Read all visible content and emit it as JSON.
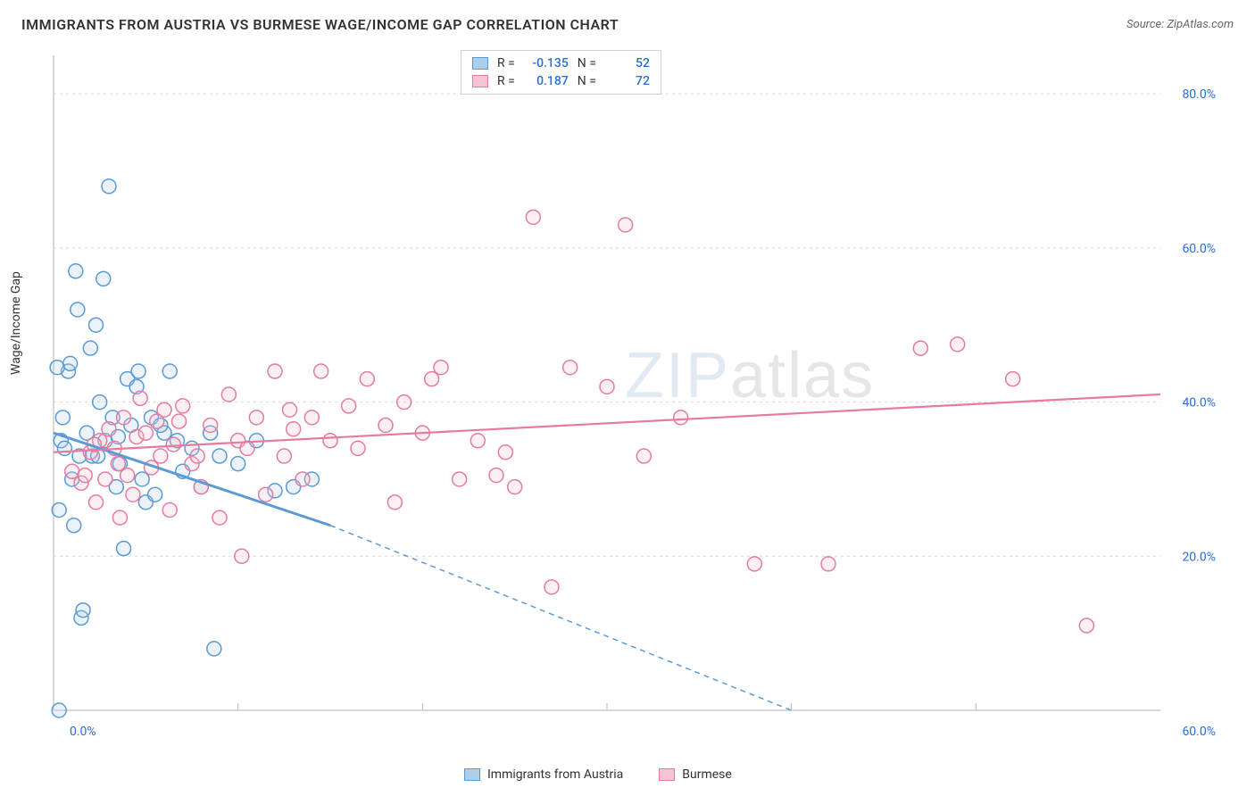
{
  "title": "IMMIGRANTS FROM AUSTRIA VS BURMESE WAGE/INCOME GAP CORRELATION CHART",
  "source_label": "Source: ",
  "source_name": "ZipAtlas.com",
  "ylabel": "Wage/Income Gap",
  "watermark_bold": "ZIP",
  "watermark_thin": "atlas",
  "chart": {
    "type": "scatter",
    "background_color": "#ffffff",
    "grid_color": "#d8d8d8",
    "plot_border_color": "#cccccc",
    "axis_tick_color": "#bbbbbb",
    "tick_label_color": "#2a6fd6",
    "tick_fontsize": 14,
    "xlim": [
      0,
      60
    ],
    "ylim": [
      0,
      85
    ],
    "xticks": [
      0,
      60
    ],
    "xtick_labels": [
      "0.0%",
      "60.0%"
    ],
    "yticks": [
      20,
      40,
      60,
      80
    ],
    "ytick_labels": [
      "20.0%",
      "40.0%",
      "60.0%",
      "80.0%"
    ],
    "marker_radius": 8,
    "marker_stroke_width": 1.5,
    "marker_fill_opacity": 0.25,
    "series": [
      {
        "name": "Immigrants from Austria",
        "key": "austria",
        "color_stroke": "#5a9bd5",
        "color_fill": "#aecde8",
        "R": "-0.135",
        "N": "52",
        "trend": {
          "x1": 0,
          "y1": 36,
          "x2_solid": 15,
          "y2_solid": 24,
          "x2_dash": 40,
          "y2_dash": 0,
          "width": 3,
          "dash": "6,5"
        },
        "points": [
          [
            0.4,
            35
          ],
          [
            0.5,
            38
          ],
          [
            0.6,
            34
          ],
          [
            0.8,
            44
          ],
          [
            0.9,
            45
          ],
          [
            1.0,
            30
          ],
          [
            1.1,
            24
          ],
          [
            1.2,
            57
          ],
          [
            1.3,
            52
          ],
          [
            1.4,
            33
          ],
          [
            1.5,
            12
          ],
          [
            1.6,
            13
          ],
          [
            1.8,
            36
          ],
          [
            2.0,
            47
          ],
          [
            2.1,
            33
          ],
          [
            2.3,
            50
          ],
          [
            2.5,
            40
          ],
          [
            2.7,
            56
          ],
          [
            2.8,
            35
          ],
          [
            3.0,
            68
          ],
          [
            3.2,
            38
          ],
          [
            3.4,
            29
          ],
          [
            3.5,
            35.5
          ],
          [
            3.6,
            32
          ],
          [
            3.8,
            21
          ],
          [
            4.0,
            43
          ],
          [
            4.2,
            37
          ],
          [
            4.5,
            42
          ],
          [
            4.8,
            30
          ],
          [
            5.0,
            27
          ],
          [
            5.3,
            38
          ],
          [
            5.5,
            28
          ],
          [
            6.0,
            36
          ],
          [
            6.3,
            44
          ],
          [
            6.7,
            35
          ],
          [
            7.0,
            31
          ],
          [
            7.5,
            34
          ],
          [
            8.0,
            29
          ],
          [
            8.5,
            36
          ],
          [
            8.7,
            8
          ],
          [
            9.0,
            33
          ],
          [
            10.0,
            32
          ],
          [
            11.0,
            35
          ],
          [
            12.0,
            28.5
          ],
          [
            13.0,
            29
          ],
          [
            14.0,
            30
          ],
          [
            0.3,
            0
          ],
          [
            0.3,
            26
          ],
          [
            0.2,
            44.5
          ],
          [
            4.6,
            44
          ],
          [
            2.4,
            33
          ],
          [
            5.8,
            37
          ]
        ]
      },
      {
        "name": "Burmese",
        "key": "burmese",
        "color_stroke": "#e57ba0",
        "color_fill": "#f5c3d3",
        "R": "0.187",
        "N": "72",
        "trend": {
          "x1": 0,
          "y1": 33.5,
          "x2_solid": 60,
          "y2_solid": 41,
          "x2_dash": 60,
          "y2_dash": 41,
          "width": 2.2,
          "dash": ""
        },
        "points": [
          [
            1.0,
            31
          ],
          [
            1.5,
            29.5
          ],
          [
            1.7,
            30.5
          ],
          [
            2.0,
            33.5
          ],
          [
            2.3,
            27
          ],
          [
            2.5,
            35
          ],
          [
            2.8,
            30
          ],
          [
            3.0,
            36.5
          ],
          [
            3.3,
            34
          ],
          [
            3.5,
            32
          ],
          [
            3.8,
            38
          ],
          [
            4.0,
            30.5
          ],
          [
            4.3,
            28
          ],
          [
            4.5,
            35.5
          ],
          [
            5.0,
            36
          ],
          [
            5.3,
            31.5
          ],
          [
            5.8,
            33
          ],
          [
            6.0,
            39
          ],
          [
            6.3,
            26
          ],
          [
            6.5,
            34.5
          ],
          [
            7.0,
            39.5
          ],
          [
            7.5,
            32
          ],
          [
            8.0,
            29
          ],
          [
            8.5,
            37
          ],
          [
            9.0,
            25
          ],
          [
            9.5,
            41
          ],
          [
            10.0,
            35
          ],
          [
            10.5,
            34
          ],
          [
            11.0,
            38
          ],
          [
            11.5,
            28
          ],
          [
            12.0,
            44
          ],
          [
            12.5,
            33
          ],
          [
            13.0,
            36.5
          ],
          [
            13.5,
            30
          ],
          [
            14.0,
            38
          ],
          [
            14.5,
            44
          ],
          [
            15.0,
            35
          ],
          [
            16.0,
            39.5
          ],
          [
            17.0,
            43
          ],
          [
            18.0,
            37
          ],
          [
            19.0,
            40
          ],
          [
            20.0,
            36
          ],
          [
            21.0,
            44.5
          ],
          [
            22.0,
            30
          ],
          [
            23.0,
            35
          ],
          [
            24.0,
            30.5
          ],
          [
            25.0,
            29
          ],
          [
            26.0,
            64
          ],
          [
            27.0,
            16
          ],
          [
            28.0,
            44.5
          ],
          [
            30.0,
            42
          ],
          [
            31.0,
            63
          ],
          [
            32.0,
            33
          ],
          [
            34.0,
            38
          ],
          [
            38.0,
            19
          ],
          [
            42.0,
            19
          ],
          [
            47.0,
            47
          ],
          [
            49.0,
            47.5
          ],
          [
            52.0,
            43
          ],
          [
            56.0,
            11
          ],
          [
            10.2,
            20
          ],
          [
            6.8,
            37.5
          ],
          [
            3.6,
            25
          ],
          [
            4.7,
            40.5
          ],
          [
            2.2,
            34.5
          ],
          [
            12.8,
            39
          ],
          [
            7.8,
            33
          ],
          [
            16.5,
            34
          ],
          [
            5.6,
            37.5
          ],
          [
            18.5,
            27
          ],
          [
            20.5,
            43
          ],
          [
            24.5,
            33.5
          ]
        ]
      }
    ]
  },
  "legend": {
    "r_label": "R =",
    "n_label": "N ="
  }
}
